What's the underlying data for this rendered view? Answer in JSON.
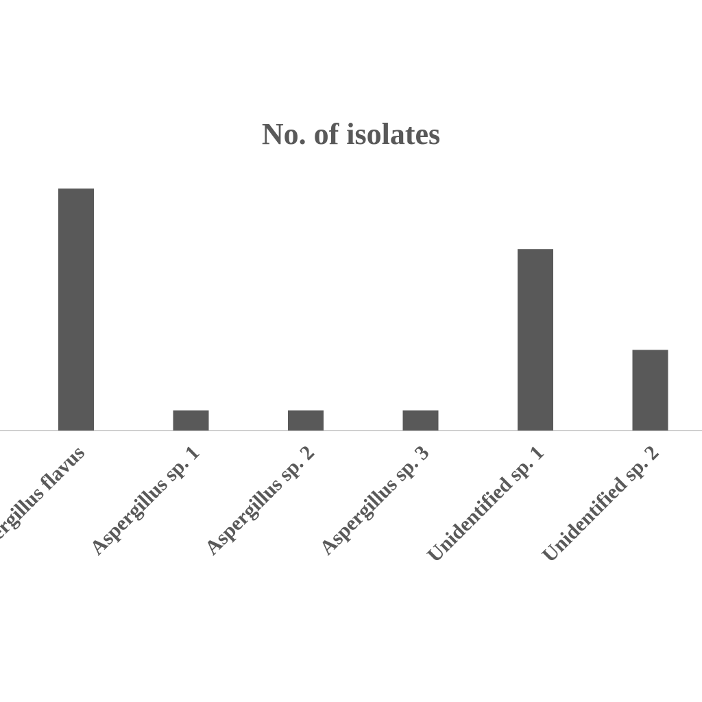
{
  "chart_data": {
    "type": "bar",
    "title": "No. of isolates",
    "categories": [
      "Aspergillus flavus",
      "Aspergillus sp. 1",
      "Aspergillus sp. 2",
      "Aspergillus sp. 3",
      "Unidentified sp. 1",
      "Unidentified sp. 2"
    ],
    "values": [
      12,
      1,
      1,
      1,
      9,
      4
    ],
    "color": "#595959"
  }
}
